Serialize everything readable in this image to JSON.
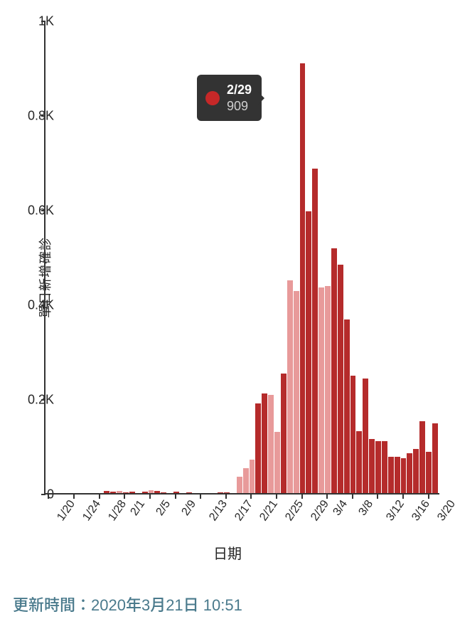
{
  "chart": {
    "type": "bar",
    "y_axis": {
      "label": "單日新增確診",
      "ticks": [
        0,
        200,
        400,
        600,
        800,
        1000
      ],
      "tick_labels": [
        "0",
        "0.2K",
        "0.4K",
        "0.6K",
        "0.8K",
        "1K"
      ],
      "max": 1000
    },
    "x_axis": {
      "label": "日期",
      "tick_labels": [
        "1/20",
        "1/24",
        "1/28",
        "2/1",
        "2/5",
        "2/9",
        "2/13",
        "2/17",
        "2/21",
        "2/25",
        "2/29",
        "3/4",
        "3/8",
        "3/12",
        "3/16",
        "3/20"
      ],
      "tick_indices": [
        0,
        4,
        8,
        12,
        16,
        20,
        24,
        28,
        32,
        36,
        40,
        44,
        48,
        52,
        56,
        60
      ]
    },
    "colors": {
      "bar_main": "#b52b2b",
      "bar_alt": "#e89a9a",
      "axis": "#333333",
      "background": "#ffffff",
      "text": "#262626"
    },
    "bars": [
      {
        "date": "1/20",
        "v": 0,
        "c": "main"
      },
      {
        "date": "1/21",
        "v": 0,
        "c": "main"
      },
      {
        "date": "1/22",
        "v": 0,
        "c": "main"
      },
      {
        "date": "1/23",
        "v": 0,
        "c": "main"
      },
      {
        "date": "1/24",
        "v": 0,
        "c": "main"
      },
      {
        "date": "1/25",
        "v": 0,
        "c": "main"
      },
      {
        "date": "1/26",
        "v": 0,
        "c": "main"
      },
      {
        "date": "1/27",
        "v": 0,
        "c": "main"
      },
      {
        "date": "1/28",
        "v": 0,
        "c": "main"
      },
      {
        "date": "1/29",
        "v": 4,
        "c": "main"
      },
      {
        "date": "1/30",
        "v": 3,
        "c": "main"
      },
      {
        "date": "1/31",
        "v": 5,
        "c": "alt"
      },
      {
        "date": "2/1",
        "v": 1,
        "c": "main"
      },
      {
        "date": "2/2",
        "v": 3,
        "c": "main"
      },
      {
        "date": "2/3",
        "v": 0,
        "c": "main"
      },
      {
        "date": "2/4",
        "v": 3,
        "c": "main"
      },
      {
        "date": "2/5",
        "v": 6,
        "c": "alt"
      },
      {
        "date": "2/6",
        "v": 5,
        "c": "main"
      },
      {
        "date": "2/7",
        "v": 1,
        "c": "main"
      },
      {
        "date": "2/8",
        "v": 0,
        "c": "main"
      },
      {
        "date": "2/9",
        "v": 3,
        "c": "main"
      },
      {
        "date": "2/10",
        "v": 0,
        "c": "main"
      },
      {
        "date": "2/11",
        "v": 1,
        "c": "main"
      },
      {
        "date": "2/12",
        "v": 0,
        "c": "main"
      },
      {
        "date": "2/13",
        "v": 0,
        "c": "main"
      },
      {
        "date": "2/14",
        "v": 0,
        "c": "main"
      },
      {
        "date": "2/15",
        "v": 0,
        "c": "main"
      },
      {
        "date": "2/16",
        "v": 1,
        "c": "main"
      },
      {
        "date": "2/17",
        "v": 1,
        "c": "main"
      },
      {
        "date": "2/18",
        "v": 0,
        "c": "main"
      },
      {
        "date": "2/19",
        "v": 34,
        "c": "alt"
      },
      {
        "date": "2/20",
        "v": 53,
        "c": "alt"
      },
      {
        "date": "2/21",
        "v": 70,
        "c": "alt"
      },
      {
        "date": "2/22",
        "v": 190,
        "c": "main"
      },
      {
        "date": "2/23",
        "v": 210,
        "c": "main"
      },
      {
        "date": "2/24",
        "v": 207,
        "c": "alt"
      },
      {
        "date": "2/25",
        "v": 130,
        "c": "alt"
      },
      {
        "date": "2/26",
        "v": 253,
        "c": "main"
      },
      {
        "date": "2/27",
        "v": 449,
        "c": "alt"
      },
      {
        "date": "2/28",
        "v": 427,
        "c": "alt"
      },
      {
        "date": "2/29",
        "v": 909,
        "c": "main"
      },
      {
        "date": "3/1",
        "v": 595,
        "c": "main"
      },
      {
        "date": "3/2",
        "v": 686,
        "c": "main"
      },
      {
        "date": "3/3",
        "v": 435,
        "c": "alt"
      },
      {
        "date": "3/4",
        "v": 438,
        "c": "alt"
      },
      {
        "date": "3/5",
        "v": 518,
        "c": "main"
      },
      {
        "date": "3/6",
        "v": 483,
        "c": "main"
      },
      {
        "date": "3/7",
        "v": 367,
        "c": "main"
      },
      {
        "date": "3/8",
        "v": 248,
        "c": "main"
      },
      {
        "date": "3/9",
        "v": 131,
        "c": "main"
      },
      {
        "date": "3/10",
        "v": 242,
        "c": "main"
      },
      {
        "date": "3/11",
        "v": 114,
        "c": "main"
      },
      {
        "date": "3/12",
        "v": 110,
        "c": "main"
      },
      {
        "date": "3/13",
        "v": 110,
        "c": "main"
      },
      {
        "date": "3/14",
        "v": 76,
        "c": "main"
      },
      {
        "date": "3/15",
        "v": 76,
        "c": "main"
      },
      {
        "date": "3/16",
        "v": 74,
        "c": "main"
      },
      {
        "date": "3/17",
        "v": 84,
        "c": "main"
      },
      {
        "date": "3/18",
        "v": 93,
        "c": "main"
      },
      {
        "date": "3/19",
        "v": 152,
        "c": "main"
      },
      {
        "date": "3/20",
        "v": 87,
        "c": "main"
      },
      {
        "date": "3/21",
        "v": 147,
        "c": "main"
      }
    ],
    "tooltip": {
      "date": "2/29",
      "value": "909",
      "dot_color": "#c62828",
      "bg": "#333333",
      "date_color": "#ffffff",
      "value_color": "#cfcfcf"
    }
  },
  "update": {
    "prefix": "更新時間：",
    "time": "2020年3月21日 10:51",
    "color": "#4a7a8c"
  }
}
